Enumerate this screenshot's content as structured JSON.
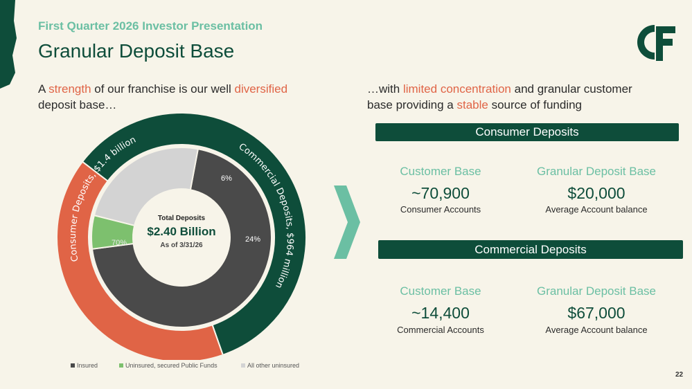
{
  "header": {
    "subtitle": "First Quarter 2026 Investor Presentation",
    "title": "Granular Deposit Base",
    "logo_text": "C&F"
  },
  "left_intro": {
    "p1": "A ",
    "h1": "strength",
    "p2": " of our franchise is our well ",
    "h2": "diversified",
    "p3": "deposit base…"
  },
  "right_intro": {
    "p1": "…with ",
    "h1": "limited concentration",
    "p2": " and granular customer",
    "p3": "base providing a ",
    "h2": "stable",
    "p4": " source of funding"
  },
  "consumer": {
    "band": "Consumer Deposits",
    "customer_base_label": "Customer Base",
    "customer_base_value": "~70,900",
    "customer_base_sub": "Consumer Accounts",
    "granular_label": "Granular Deposit Base",
    "granular_value": "$20,000",
    "granular_sub": "Average Account balance"
  },
  "commercial": {
    "band": "Commercial Deposits",
    "customer_base_label": "Customer Base",
    "customer_base_value": "~14,400",
    "customer_base_sub": "Commercial Accounts",
    "granular_label": "Granular Deposit Base",
    "granular_value": "$67,000",
    "granular_sub": "Average Account balance"
  },
  "colors": {
    "dark_green": "#0e4d3a",
    "orange": "#e06446",
    "teal": "#6bbfa3",
    "insured": "#4a4a4a",
    "public_funds": "#7dc06e",
    "other_uninsured": "#d3d3d3"
  },
  "chart_data": {
    "type": "pie",
    "center": {
      "label": "Total Deposits",
      "value": "$2.40 Billion",
      "date": "As of 3/31/26"
    },
    "outer": [
      {
        "name": "Consumer Deposits, $1.4 billion",
        "value": 1.4
      },
      {
        "name": "Commercial Deposits, $964 million",
        "value": 0.964
      }
    ],
    "inner": [
      {
        "name": "Insured",
        "value": 70,
        "label": "70%"
      },
      {
        "name": "Uninsured, secured Public Funds",
        "value": 6,
        "label": "6%"
      },
      {
        "name": "All other uninsured",
        "value": 24,
        "label": "24%"
      }
    ],
    "legend": [
      "Insured",
      "Uninsured, secured Public Funds",
      "All other uninsured"
    ],
    "legend_position": "bottom"
  },
  "page_number": "22"
}
